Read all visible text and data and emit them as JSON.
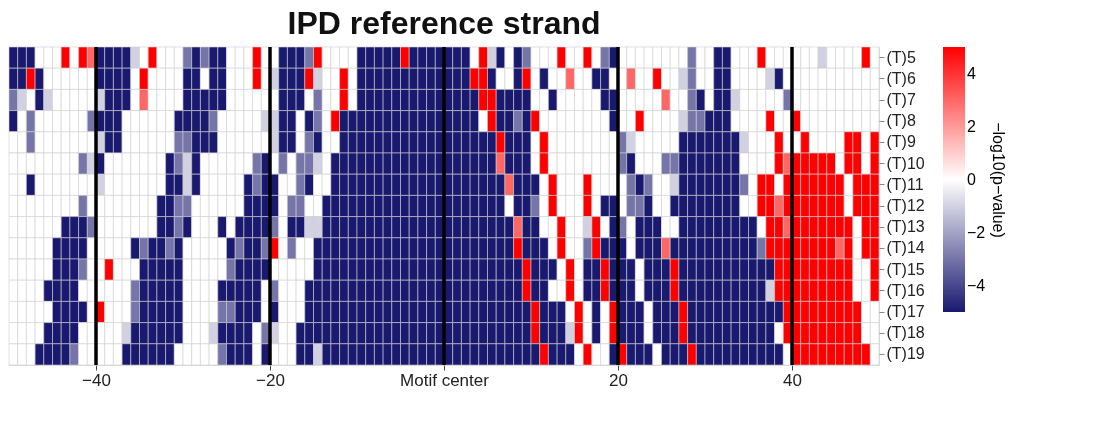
{
  "chart_data": {
    "type": "heatmap",
    "title": "IPD reference strand",
    "clabel": "−log10(p−value)",
    "x": [
      -49.5,
      -48.5,
      -47.5,
      -46.5,
      -45.5,
      -44.5,
      -43.5,
      -42.5,
      -41.5,
      -40.5,
      -39.5,
      -38.5,
      -37.5,
      -36.5,
      -35.5,
      -34.5,
      -33.5,
      -32.5,
      -31.5,
      -30.5,
      -29.5,
      -28.5,
      -27.5,
      -26.5,
      -25.5,
      -24.5,
      -23.5,
      -22.5,
      -21.5,
      -20.5,
      -19.5,
      -18.5,
      -17.5,
      -16.5,
      -15.5,
      -14.5,
      -13.5,
      -12.5,
      -11.5,
      -10.5,
      -9.5,
      -8.5,
      -7.5,
      -6.5,
      -5.5,
      -4.5,
      -3.5,
      -2.5,
      -1.5,
      -0.5,
      0.5,
      1.5,
      2.5,
      3.5,
      4.5,
      5.5,
      6.5,
      7.5,
      8.5,
      9.5,
      10.5,
      11.5,
      12.5,
      13.5,
      14.5,
      15.5,
      16.5,
      17.5,
      18.5,
      19.5,
      20.5,
      21.5,
      22.5,
      23.5,
      24.5,
      25.5,
      26.5,
      27.5,
      28.5,
      29.5,
      30.5,
      31.5,
      32.5,
      33.5,
      34.5,
      35.5,
      36.5,
      37.5,
      38.5,
      39.5,
      40.5,
      41.5,
      42.5,
      43.5,
      44.5,
      45.5,
      46.5,
      47.5,
      48.5,
      49.5
    ],
    "xlim": [
      -50,
      50
    ],
    "xticks": [
      -40,
      -20,
      {
        "value": 0,
        "label": "Motif center"
      },
      20,
      40
    ],
    "y_categories": [
      "(T)5",
      "(T)6",
      "(T)7",
      "(T)8",
      "(T)9",
      "(T)10",
      "(T)11",
      "(T)12",
      "(T)13",
      "(T)14",
      "(T)15",
      "(T)16",
      "(T)17",
      "(T)18",
      "(T)19"
    ],
    "clim": [
      -5,
      5
    ],
    "cticks": [
      -4,
      -2,
      0,
      2,
      4
    ],
    "ref_lines": [
      {
        "axis": "x",
        "value": -40,
        "color": "#000000"
      },
      {
        "axis": "x",
        "value": -20,
        "color": "#000000"
      },
      {
        "axis": "x",
        "value": 0,
        "color": "#000000"
      },
      {
        "axis": "x",
        "value": 20,
        "color": "#000000"
      },
      {
        "axis": "x",
        "value": 40,
        "color": "#000000"
      }
    ],
    "cells": [
      [
        -5,
        -5,
        -5,
        0,
        0,
        0,
        5,
        0,
        5,
        3,
        -5,
        -5,
        -5,
        -5,
        -1,
        0,
        5,
        0,
        0,
        0,
        -3,
        -5,
        -3,
        -5,
        -5,
        0,
        0,
        0,
        5,
        0,
        0,
        -5,
        -5,
        -5,
        -3,
        5,
        0,
        0,
        0,
        0,
        -5,
        -5,
        -5,
        -5,
        -5,
        5,
        -5,
        -5,
        -5,
        -5,
        -5,
        -5,
        -5,
        0,
        5,
        -1,
        -5,
        0,
        -5,
        -3,
        0,
        0,
        0,
        5,
        0,
        0,
        5,
        0,
        -3,
        -5,
        0,
        0,
        0,
        0,
        0,
        0,
        0,
        0,
        -3,
        0,
        0,
        -5,
        -5,
        0,
        0,
        0,
        5,
        0,
        0,
        0,
        0,
        0,
        0,
        -1,
        0,
        0,
        0,
        0,
        5,
        0
      ],
      [
        -5,
        -5,
        5,
        -5,
        0,
        0,
        0,
        0,
        0,
        0,
        -5,
        -5,
        -5,
        -5,
        0,
        5,
        0,
        0,
        0,
        0,
        -5,
        -5,
        0,
        -5,
        -5,
        0,
        0,
        0,
        5,
        0,
        -1,
        -5,
        -5,
        -5,
        5,
        -1,
        0,
        0,
        5,
        0,
        -5,
        -5,
        -5,
        -5,
        -5,
        -5,
        -5,
        -5,
        -5,
        -5,
        -5,
        -5,
        -5,
        5,
        5,
        -5,
        0,
        0,
        -5,
        5,
        0,
        -5,
        0,
        0,
        3,
        0,
        0,
        -5,
        -5,
        0,
        0,
        3,
        0,
        0,
        5,
        0,
        0,
        -1,
        -3,
        0,
        0,
        -5,
        -5,
        0,
        0,
        0,
        0,
        -1,
        -5,
        0,
        0,
        0,
        0,
        0,
        0,
        0,
        0,
        0,
        0,
        0
      ],
      [
        -3,
        -1,
        0,
        -5,
        -1,
        0,
        0,
        0,
        0,
        0,
        -1,
        -5,
        -5,
        -5,
        0,
        3,
        0,
        0,
        0,
        0,
        -5,
        -5,
        -5,
        -5,
        -5,
        0,
        0,
        0,
        0,
        0,
        0,
        -5,
        -5,
        -5,
        0,
        -3,
        0,
        0,
        5,
        0,
        -5,
        -5,
        -5,
        -5,
        -5,
        -5,
        -5,
        -5,
        -5,
        -5,
        -5,
        -5,
        -5,
        -5,
        5,
        5,
        -5,
        -5,
        -5,
        -5,
        0,
        0,
        -5,
        0,
        0,
        0,
        0,
        0,
        -5,
        -5,
        0,
        0,
        0,
        0,
        0,
        3,
        0,
        0,
        -3,
        -5,
        0,
        -5,
        -5,
        -1,
        0,
        0,
        0,
        0,
        0,
        -3,
        0,
        0,
        0,
        0,
        0,
        0,
        0,
        0,
        0,
        0
      ],
      [
        -5,
        0,
        -3,
        0,
        0,
        0,
        0,
        0,
        0,
        -3,
        -5,
        -5,
        -5,
        0,
        0,
        0,
        0,
        0,
        0,
        -5,
        -5,
        -5,
        -5,
        -3,
        0,
        0,
        0,
        0,
        0,
        -1,
        -1,
        -5,
        -5,
        0,
        -5,
        -3,
        0,
        5,
        -5,
        -5,
        -5,
        -5,
        -5,
        -5,
        -5,
        -5,
        -5,
        -5,
        -5,
        -5,
        -5,
        -5,
        -5,
        -5,
        0,
        5,
        -5,
        -5,
        -3,
        -5,
        5,
        0,
        0,
        0,
        0,
        0,
        0,
        0,
        0,
        -5,
        0,
        0,
        5,
        0,
        0,
        0,
        0,
        -1,
        -3,
        -3,
        -5,
        -5,
        -5,
        0,
        0,
        0,
        0,
        5,
        0,
        0,
        5,
        0,
        0,
        0,
        0,
        0,
        0,
        0,
        0,
        0
      ],
      [
        0,
        0,
        -3,
        0,
        0,
        0,
        0,
        0,
        0,
        0,
        -1,
        -5,
        -5,
        0,
        0,
        0,
        0,
        0,
        0,
        -3,
        -3,
        -5,
        -5,
        -5,
        0,
        0,
        0,
        0,
        0,
        0,
        -1,
        -5,
        -5,
        0,
        -3,
        -5,
        0,
        0,
        -5,
        -5,
        -5,
        -5,
        -5,
        -5,
        -5,
        -5,
        -5,
        -5,
        -5,
        -5,
        -5,
        -5,
        -5,
        -5,
        -5,
        -5,
        5,
        -5,
        -5,
        -5,
        0,
        5,
        0,
        0,
        0,
        0,
        0,
        0,
        0,
        0,
        -3,
        -1,
        0,
        0,
        0,
        0,
        0,
        -5,
        -5,
        -5,
        -5,
        -5,
        -5,
        -5,
        -1,
        0,
        0,
        0,
        5,
        0,
        0,
        5,
        0,
        0,
        0,
        0,
        5,
        5,
        0,
        5
      ],
      [
        0,
        0,
        0,
        0,
        0,
        0,
        0,
        0,
        -3,
        -1,
        -5,
        0,
        0,
        0,
        0,
        0,
        0,
        0,
        -5,
        -3,
        -1,
        -5,
        0,
        0,
        0,
        0,
        0,
        0,
        -3,
        -5,
        0,
        -3,
        0,
        -3,
        -3,
        -1,
        0,
        -5,
        -5,
        -5,
        -5,
        -5,
        -5,
        -5,
        -5,
        -5,
        -5,
        -5,
        -5,
        -5,
        -5,
        -5,
        -5,
        -5,
        -5,
        -5,
        3,
        -5,
        -5,
        -5,
        0,
        5,
        0,
        0,
        0,
        0,
        0,
        0,
        0,
        0,
        -3,
        -5,
        0,
        0,
        0,
        -3,
        -3,
        -5,
        -5,
        -5,
        -5,
        -5,
        -5,
        -5,
        0,
        0,
        0,
        0,
        5,
        3,
        5,
        5,
        5,
        5,
        5,
        0,
        5,
        5,
        0,
        5
      ],
      [
        0,
        0,
        -5,
        0,
        0,
        0,
        0,
        0,
        0,
        0,
        -1,
        0,
        0,
        0,
        0,
        0,
        0,
        0,
        -5,
        -5,
        -1,
        -5,
        0,
        0,
        0,
        0,
        0,
        -5,
        -3,
        -5,
        -5,
        0,
        0,
        -3,
        -5,
        0,
        0,
        -5,
        -5,
        -5,
        -5,
        -5,
        -5,
        -5,
        -5,
        -5,
        -5,
        -5,
        -5,
        -5,
        -5,
        -5,
        -5,
        -5,
        -5,
        -5,
        -5,
        3,
        -5,
        -5,
        -5,
        0,
        5,
        0,
        0,
        0,
        5,
        0,
        0,
        0,
        0,
        -3,
        -5,
        -3,
        0,
        0,
        -1,
        -5,
        -5,
        -5,
        -5,
        -5,
        -5,
        -5,
        -3,
        0,
        5,
        5,
        0,
        5,
        5,
        5,
        5,
        5,
        5,
        5,
        0,
        5,
        5,
        5
      ],
      [
        0,
        0,
        0,
        0,
        0,
        0,
        0,
        0,
        -3,
        0,
        0,
        0,
        0,
        0,
        0,
        0,
        0,
        -5,
        -5,
        -3,
        -3,
        0,
        0,
        0,
        0,
        0,
        0,
        -5,
        -5,
        -5,
        -5,
        0,
        -3,
        -3,
        0,
        0,
        -5,
        -5,
        -5,
        -5,
        -5,
        -5,
        -5,
        -5,
        -5,
        -5,
        -5,
        -5,
        -5,
        -5,
        -5,
        -5,
        -5,
        -5,
        -5,
        -5,
        -5,
        0,
        -5,
        -5,
        -3,
        0,
        5,
        0,
        0,
        0,
        5,
        0,
        -5,
        -5,
        0,
        -3,
        -3,
        -5,
        0,
        0,
        -5,
        -5,
        -5,
        -5,
        -5,
        -5,
        -5,
        -5,
        0,
        0,
        5,
        5,
        3,
        5,
        5,
        5,
        5,
        5,
        5,
        5,
        0,
        5,
        5,
        5
      ],
      [
        0,
        0,
        0,
        0,
        0,
        0,
        -5,
        -5,
        -5,
        -3,
        0,
        0,
        0,
        0,
        0,
        0,
        0,
        -5,
        -5,
        -3,
        -5,
        0,
        0,
        0,
        -5,
        0,
        -5,
        -5,
        -5,
        -5,
        -3,
        0,
        -5,
        -5,
        -1,
        -1,
        -5,
        -5,
        -5,
        -5,
        -5,
        -5,
        -5,
        -5,
        -5,
        -5,
        -5,
        -5,
        -5,
        -5,
        -5,
        -5,
        -5,
        -5,
        -5,
        -5,
        -5,
        -5,
        3,
        -5,
        -5,
        0,
        0,
        5,
        0,
        0,
        -1,
        5,
        0,
        -5,
        -3,
        0,
        -5,
        -5,
        -5,
        0,
        0,
        -5,
        -5,
        -5,
        -5,
        -5,
        -5,
        -5,
        -5,
        -5,
        0,
        5,
        5,
        3,
        5,
        5,
        5,
        5,
        5,
        5,
        5,
        0,
        5,
        5
      ],
      [
        0,
        0,
        0,
        0,
        0,
        -5,
        -5,
        -5,
        -5,
        0,
        0,
        0,
        0,
        0,
        -5,
        -3,
        -5,
        -5,
        -3,
        -5,
        0,
        0,
        0,
        0,
        0,
        -5,
        -3,
        -5,
        -5,
        -3,
        5,
        0,
        -3,
        0,
        0,
        -5,
        -5,
        -5,
        -5,
        -5,
        -5,
        -5,
        -5,
        -5,
        -5,
        -5,
        -5,
        -5,
        -5,
        -5,
        -5,
        -5,
        -5,
        -5,
        -5,
        -5,
        -5,
        -5,
        5,
        -5,
        -5,
        -5,
        0,
        5,
        0,
        0,
        -3,
        5,
        -5,
        -5,
        -5,
        0,
        -5,
        -5,
        -5,
        3,
        -5,
        -5,
        -5,
        -5,
        -5,
        -5,
        -5,
        -5,
        -5,
        -5,
        -3,
        5,
        5,
        5,
        5,
        5,
        5,
        5,
        5,
        3,
        5,
        0,
        5,
        5
      ],
      [
        0,
        0,
        0,
        0,
        0,
        -5,
        -5,
        -5,
        -3,
        0,
        0,
        5,
        0,
        0,
        0,
        -5,
        -5,
        -5,
        -5,
        -5,
        0,
        0,
        0,
        0,
        0,
        -3,
        -5,
        -5,
        -5,
        -5,
        0,
        0,
        0,
        0,
        0,
        -5,
        -5,
        -5,
        -5,
        -5,
        -5,
        -5,
        -5,
        -5,
        -5,
        -5,
        -5,
        -5,
        -5,
        -5,
        -5,
        -5,
        -5,
        -5,
        -5,
        -5,
        -5,
        -5,
        -5,
        5,
        -5,
        -5,
        -5,
        0,
        5,
        0,
        -5,
        -5,
        5,
        -5,
        -5,
        -5,
        0,
        -5,
        -5,
        -5,
        5,
        -5,
        -5,
        -5,
        -5,
        -5,
        -5,
        -5,
        -5,
        -5,
        -5,
        -5,
        5,
        5,
        5,
        5,
        5,
        5,
        5,
        5,
        5,
        0,
        0,
        5
      ],
      [
        0,
        0,
        0,
        0,
        -5,
        -5,
        -5,
        -5,
        0,
        0,
        0,
        0,
        0,
        0,
        -3,
        -5,
        -5,
        -5,
        -5,
        -5,
        0,
        0,
        0,
        0,
        -5,
        -5,
        -5,
        -5,
        -5,
        0,
        -3,
        0,
        0,
        0,
        -5,
        -5,
        -5,
        -5,
        -5,
        -5,
        -5,
        -5,
        -5,
        -5,
        -5,
        -5,
        -5,
        -5,
        -5,
        -5,
        -5,
        -5,
        -5,
        -5,
        -5,
        -5,
        -5,
        -5,
        -5,
        5,
        -5,
        -5,
        0,
        0,
        5,
        0,
        -5,
        -5,
        5,
        -5,
        -5,
        -5,
        0,
        -5,
        -5,
        -5,
        5,
        -5,
        -5,
        -5,
        -5,
        -5,
        -5,
        -5,
        -5,
        -5,
        -5,
        -1,
        5,
        5,
        5,
        5,
        5,
        5,
        5,
        5,
        5,
        0,
        0,
        5
      ],
      [
        0,
        0,
        0,
        0,
        0,
        -5,
        -5,
        -5,
        -5,
        0,
        5,
        0,
        0,
        0,
        -3,
        -5,
        -5,
        -5,
        -5,
        -5,
        0,
        0,
        0,
        0,
        -3,
        -3,
        -5,
        -5,
        -5,
        0,
        -5,
        0,
        0,
        0,
        -5,
        -5,
        -5,
        -5,
        -5,
        -5,
        -5,
        -5,
        -5,
        -5,
        -5,
        -5,
        -5,
        -5,
        -5,
        -5,
        -5,
        -5,
        -5,
        -5,
        -5,
        -5,
        -5,
        -5,
        -5,
        -5,
        5,
        -5,
        -5,
        -5,
        0,
        5,
        0,
        -5,
        0,
        5,
        -5,
        -5,
        -5,
        0,
        -5,
        -5,
        -5,
        5,
        -5,
        -5,
        -5,
        -5,
        -5,
        -5,
        -5,
        -5,
        -5,
        -5,
        -5,
        5,
        5,
        5,
        5,
        5,
        5,
        5,
        5,
        5,
        0,
        0
      ],
      [
        0,
        0,
        0,
        0,
        -5,
        -5,
        -5,
        -5,
        0,
        0,
        0,
        0,
        0,
        -1,
        -5,
        -5,
        -5,
        -5,
        -5,
        -5,
        0,
        0,
        0,
        -1,
        -5,
        -5,
        -5,
        -5,
        0,
        -3,
        -1,
        0,
        0,
        -5,
        -5,
        -5,
        -5,
        -5,
        -5,
        -5,
        -5,
        -5,
        -5,
        -5,
        -5,
        -5,
        -5,
        -5,
        -5,
        -5,
        -5,
        -5,
        -5,
        -5,
        -5,
        -5,
        -5,
        -5,
        -5,
        -5,
        5,
        -5,
        -5,
        -5,
        -1,
        5,
        0,
        -5,
        0,
        5,
        -5,
        -5,
        -5,
        0,
        -5,
        -5,
        -5,
        5,
        -5,
        -5,
        -5,
        -5,
        -5,
        -5,
        -5,
        -5,
        -5,
        -5,
        0,
        5,
        5,
        5,
        5,
        5,
        5,
        5,
        5,
        5,
        0,
        0
      ],
      [
        0,
        0,
        0,
        -5,
        -5,
        -5,
        -5,
        -3,
        0,
        0,
        0,
        0,
        0,
        -5,
        -5,
        -5,
        -5,
        -5,
        -5,
        0,
        0,
        0,
        0,
        0,
        -3,
        -5,
        -5,
        -5,
        0,
        -5,
        0,
        0,
        0,
        -5,
        -5,
        -1,
        -5,
        -5,
        -5,
        -5,
        -5,
        -5,
        -5,
        -5,
        -5,
        -5,
        -5,
        -5,
        -5,
        -5,
        -5,
        -5,
        -5,
        -5,
        -5,
        -5,
        -5,
        -5,
        -5,
        -5,
        -5,
        5,
        -5,
        -5,
        -5,
        0,
        5,
        0,
        0,
        -5,
        5,
        -5,
        -5,
        -5,
        0,
        -5,
        -5,
        -5,
        5,
        -5,
        -5,
        -5,
        -5,
        -5,
        -5,
        -5,
        -5,
        -5,
        -5,
        0,
        5,
        5,
        5,
        5,
        5,
        5,
        5,
        5,
        5,
        0
      ]
    ]
  }
}
